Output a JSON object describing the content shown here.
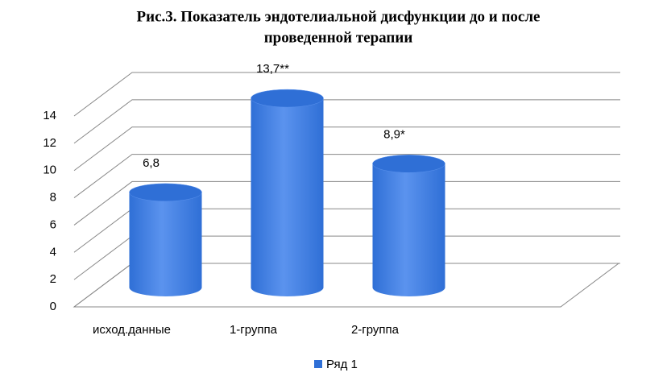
{
  "chart_data": {
    "type": "bar3d",
    "title": [
      "Рис.3. Показатель эндотелиальной дисфункции до и после",
      "проведенной терапии"
    ],
    "categories": [
      "исход.данные",
      "1-группа",
      "2-группа"
    ],
    "series": [
      {
        "name": "Ряд 1",
        "color": "#2f6fd6",
        "values": [
          6.8,
          13.7,
          8.9
        ],
        "value_labels": [
          "6,8",
          "13,7**",
          "8,9*"
        ]
      }
    ],
    "ylim": [
      0,
      14
    ],
    "yticks": [
      0,
      2,
      4,
      6,
      8,
      10,
      12,
      14
    ],
    "grid": true,
    "legend": "bottom"
  }
}
